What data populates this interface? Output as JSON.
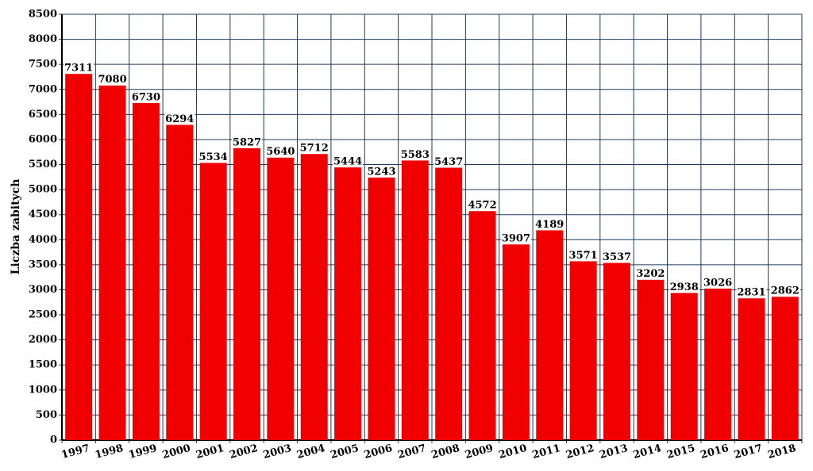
{
  "chart_data": {
    "type": "bar",
    "y_label": "Liczba zabitych",
    "categories": [
      "1997",
      "1998",
      "1999",
      "2000",
      "2001",
      "2002",
      "2003",
      "2004",
      "2005",
      "2006",
      "2007",
      "2008",
      "2009",
      "2010",
      "2011",
      "2012",
      "2013",
      "2014",
      "2015",
      "2016",
      "2017",
      "2018"
    ],
    "values": [
      7311,
      7080,
      6730,
      6294,
      5534,
      5827,
      5640,
      5712,
      5444,
      5243,
      5583,
      5437,
      4572,
      3907,
      4189,
      3571,
      3537,
      3202,
      2938,
      3026,
      2831,
      2862
    ],
    "color": "#f00000",
    "ylim": [
      0,
      8500
    ],
    "yticks": [
      0,
      500,
      1000,
      1500,
      2000,
      2500,
      3000,
      3500,
      4000,
      4500,
      5000,
      5500,
      6000,
      6500,
      7000,
      7500,
      8000,
      8500
    ],
    "grid": true
  }
}
